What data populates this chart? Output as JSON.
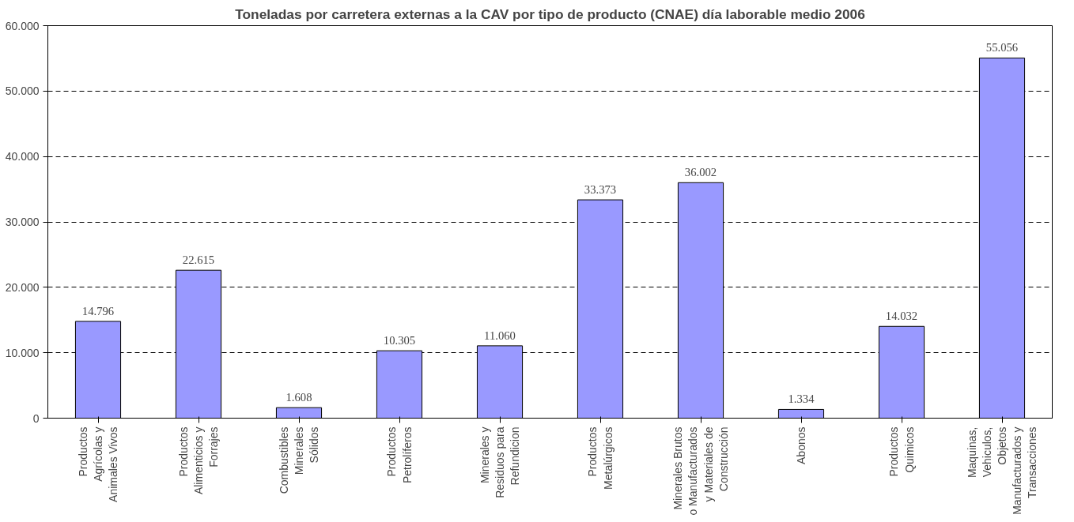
{
  "chart_data": {
    "type": "bar",
    "title": "Toneladas por carretera externas a la CAV por tipo de producto (CNAE) día laborable medio 2006",
    "categories": [
      "Productos Agrícolas y Animales Vivos",
      "Productos Alimenticios y Forrajes",
      "Combustibles Minerales Sólidos",
      "Productos Petrolíferos",
      "Minerales y Residuos para Refundicion",
      "Productos Metalúrgicos",
      "Minerales Brutos o Manufacturados y Materiales de Construcción",
      "Abonos",
      "Productos Quimicos",
      "Maquinas, Vehiculos, Objetos Manufacturados y Transacciones"
    ],
    "values": [
      14796,
      22615,
      1608,
      10305,
      11060,
      33373,
      36002,
      1334,
      14032,
      55056
    ],
    "value_labels": [
      "14.796",
      "22.615",
      "1.608",
      "10.305",
      "11.060",
      "33.373",
      "36.002",
      "1.334",
      "14.032",
      "55.056"
    ],
    "color": "#9999ff",
    "ylim": [
      0,
      60000
    ],
    "yticks": [
      {
        "value": 0,
        "label": "0"
      },
      {
        "value": 10000,
        "label": "10.000"
      },
      {
        "value": 20000,
        "label": "20.000"
      },
      {
        "value": 30000,
        "label": "30.000"
      },
      {
        "value": 40000,
        "label": "40.000"
      },
      {
        "value": 50000,
        "label": "50.000"
      },
      {
        "value": 60000,
        "label": "60.000"
      }
    ],
    "grid": "y",
    "line_style": "dashed"
  }
}
